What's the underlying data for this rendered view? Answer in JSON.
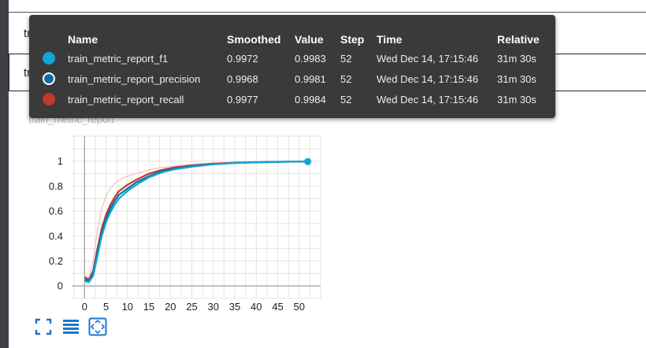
{
  "rows": {
    "loss_label": "train_loss",
    "report_label": "train_metric_report"
  },
  "card": {
    "title": "train_metric_report"
  },
  "tooltip": {
    "headers": {
      "name": "Name",
      "smoothed": "Smoothed",
      "value": "Value",
      "step": "Step",
      "time": "Time",
      "relative": "Relative"
    },
    "rows": [
      {
        "name": "train_metric_report_f1",
        "smoothed": "0.9972",
        "value": "0.9983",
        "step": "52",
        "time": "Wed Dec 14, 17:15:46",
        "relative": "31m 30s",
        "color": "#12a4d8",
        "hollow": false
      },
      {
        "name": "train_metric_report_precision",
        "smoothed": "0.9968",
        "value": "0.9981",
        "step": "52",
        "time": "Wed Dec 14, 17:15:46",
        "relative": "31m 30s",
        "color": "#0d6ea8",
        "hollow": true
      },
      {
        "name": "train_metric_report_recall",
        "smoothed": "0.9977",
        "value": "0.9984",
        "step": "52",
        "time": "Wed Dec 14, 17:15:46",
        "relative": "31m 30s",
        "color": "#c0392b",
        "hollow": false
      }
    ]
  },
  "toolbar": {
    "icons": [
      "fullscreen-icon",
      "data-list-icon",
      "fit-domain-icon"
    ],
    "color": "#1976d2"
  },
  "chart_data": {
    "type": "line",
    "xlim": [
      -3,
      55
    ],
    "ylim": [
      -0.1,
      1.2
    ],
    "xticks": [
      0,
      5,
      10,
      15,
      20,
      25,
      30,
      35,
      40,
      45,
      50
    ],
    "yticks": [
      0,
      0.2,
      0.4,
      0.6,
      0.8,
      1
    ],
    "ytick_labels": [
      "0",
      "0.2",
      "0.4",
      "0.6",
      "0.8",
      "1"
    ],
    "grid": true,
    "highlight_step": 52,
    "series": [
      {
        "name": "train_metric_report_recall",
        "color": "#c0392b",
        "x": [
          0,
          1,
          2,
          3,
          4,
          5,
          6,
          7,
          8,
          10,
          12,
          15,
          18,
          21,
          25,
          30,
          35,
          40,
          45,
          50,
          52
        ],
        "y": [
          0.07,
          0.05,
          0.12,
          0.3,
          0.46,
          0.57,
          0.65,
          0.71,
          0.76,
          0.81,
          0.85,
          0.9,
          0.93,
          0.95,
          0.965,
          0.98,
          0.988,
          0.992,
          0.995,
          0.997,
          0.998
        ]
      },
      {
        "name": "train_metric_report_precision",
        "color": "#0d6ea8",
        "x": [
          0,
          1,
          2,
          3,
          4,
          5,
          6,
          7,
          8,
          10,
          12,
          15,
          18,
          21,
          25,
          30,
          35,
          40,
          45,
          50,
          52
        ],
        "y": [
          0.05,
          0.04,
          0.1,
          0.27,
          0.43,
          0.54,
          0.62,
          0.68,
          0.73,
          0.78,
          0.83,
          0.88,
          0.92,
          0.94,
          0.96,
          0.975,
          0.985,
          0.99,
          0.994,
          0.996,
          0.997
        ]
      },
      {
        "name": "train_metric_report_f1",
        "color": "#12a4d8",
        "x": [
          0,
          1,
          2,
          3,
          4,
          5,
          6,
          7,
          8,
          10,
          12,
          15,
          18,
          21,
          25,
          30,
          35,
          40,
          45,
          50,
          52
        ],
        "y": [
          0.04,
          0.03,
          0.08,
          0.24,
          0.4,
          0.51,
          0.59,
          0.65,
          0.7,
          0.76,
          0.81,
          0.87,
          0.91,
          0.935,
          0.955,
          0.975,
          0.985,
          0.99,
          0.994,
          0.996,
          0.997
        ]
      }
    ],
    "raw_trace": {
      "color": "#f5b7b1",
      "x": [
        0,
        1,
        2,
        3,
        4,
        5,
        6,
        7,
        8,
        10,
        12,
        15,
        18,
        21,
        25,
        30
      ],
      "y": [
        0.08,
        0.06,
        0.2,
        0.45,
        0.62,
        0.72,
        0.78,
        0.82,
        0.85,
        0.88,
        0.9,
        0.93,
        0.95,
        0.96,
        0.975,
        0.985
      ]
    }
  }
}
